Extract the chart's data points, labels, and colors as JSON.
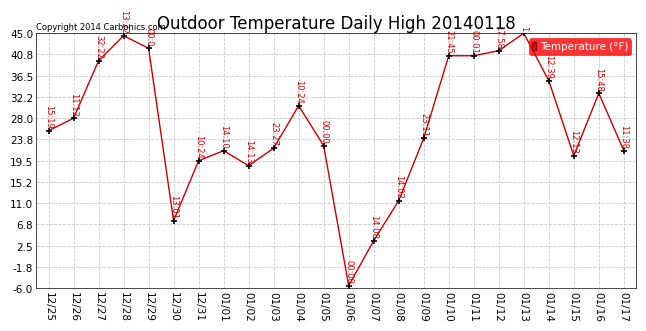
{
  "title": "Outdoor Temperature Daily High 20140118",
  "copyright": "Copyright 2014 Carbonics.com",
  "legend_label": "Temperature (°F)",
  "dates": [
    "12/25",
    "12/26",
    "12/27",
    "12/28",
    "12/29",
    "12/30",
    "12/31",
    "01/01",
    "01/02",
    "01/03",
    "01/04",
    "01/05",
    "01/06",
    "01/07",
    "01/08",
    "01/09",
    "01/10",
    "01/11",
    "01/12",
    "01/13",
    "01/14",
    "01/15",
    "01/16",
    "01/17"
  ],
  "temps": [
    25.5,
    28.0,
    39.5,
    44.5,
    42.0,
    7.5,
    19.5,
    21.5,
    18.5,
    22.0,
    30.5,
    22.5,
    -5.5,
    3.5,
    11.5,
    24.0,
    40.5,
    40.5,
    41.5,
    45.0,
    35.5,
    20.5,
    33.0,
    21.5
  ],
  "time_labels": [
    "15:19",
    "11:12",
    "32:22",
    "13:22",
    "00:0",
    "13:01",
    "10:24",
    "14:10",
    "14:13",
    "23:27",
    "10:24",
    "00:00",
    "00:00",
    "14:08",
    "14:02",
    "23:11",
    "21:45",
    "00:01",
    "17:58",
    "1",
    "12:39",
    "12:13",
    "15:48",
    "11:38"
  ],
  "line_color": "#cc0000",
  "marker_color": "#000000",
  "bg_color": "#ffffff",
  "grid_color": "#c8c8c8",
  "text_color_red": "#cc0000",
  "ylim": [
    -6.0,
    45.0
  ],
  "yticks": [
    -6.0,
    -1.8,
    2.5,
    6.8,
    11.0,
    15.2,
    19.5,
    23.8,
    28.0,
    32.2,
    36.5,
    40.8,
    45.0
  ],
  "title_fontsize": 12,
  "tick_fontsize": 7.5
}
